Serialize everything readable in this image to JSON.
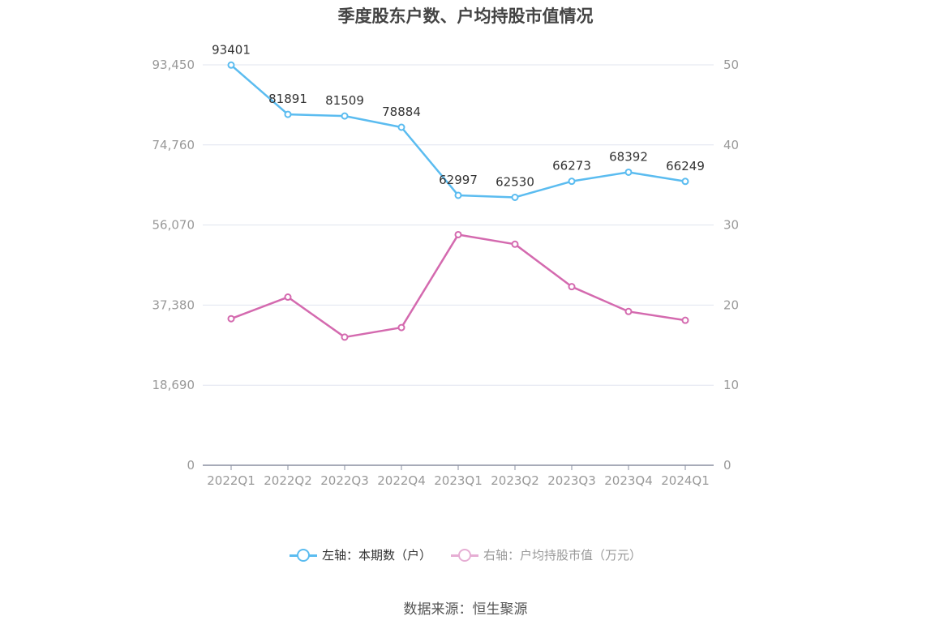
{
  "title": "季度股东户数、户均持股市值情况",
  "colors": {
    "left_series": "#5bbcf0",
    "right_series": "#d46aaf",
    "right_legend": "#e6aed4",
    "grid": "#e0e4ef",
    "axis": "#8a8fa0"
  },
  "legend": {
    "left": "左轴：本期数（户）",
    "right": "右轴：户均持股市值（万元）"
  },
  "source": "数据来源：恒生聚源",
  "chart_data": {
    "type": "line",
    "title": "季度股东户数、户均持股市值情况",
    "categories": [
      "2022Q1",
      "2022Q2",
      "2022Q3",
      "2022Q4",
      "2023Q1",
      "2023Q2",
      "2023Q3",
      "2023Q4",
      "2024Q1"
    ],
    "left_axis": {
      "ticks": [
        "0",
        "18,690",
        "37,380",
        "56,070",
        "74,760",
        "93,450"
      ],
      "ylim": [
        0,
        93450
      ]
    },
    "right_axis": {
      "ticks": [
        "0",
        "10",
        "20",
        "30",
        "40",
        "50"
      ],
      "ylim": [
        0,
        50
      ]
    },
    "series": [
      {
        "name": "左轴：本期数（户）",
        "axis": "left",
        "values": [
          93401,
          81891,
          81509,
          78884,
          62997,
          62530,
          66273,
          68392,
          66249
        ],
        "labels": [
          "93401",
          "81891",
          "81509",
          "78884",
          "62997",
          "62530",
          "66273",
          "68392",
          "66249"
        ]
      },
      {
        "name": "右轴：户均持股市值（万元）",
        "axis": "right",
        "values": [
          18.3,
          21.0,
          16.0,
          17.2,
          28.8,
          27.6,
          22.3,
          19.2,
          18.1
        ]
      }
    ],
    "grid": true,
    "legend_position": "bottom"
  }
}
